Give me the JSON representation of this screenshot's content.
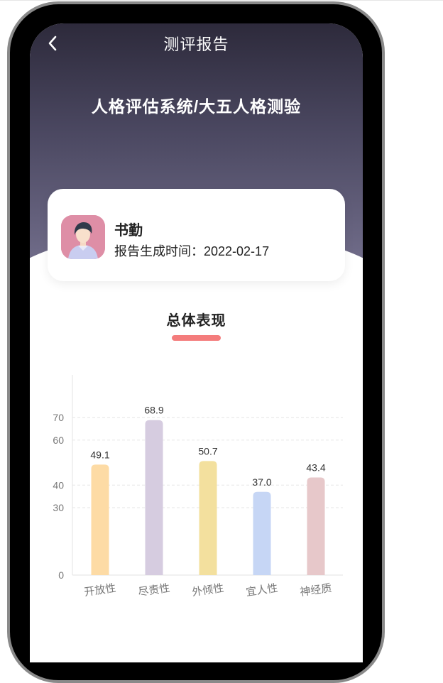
{
  "nav": {
    "title": "测评报告",
    "back_icon": "chevron-left-icon"
  },
  "header": {
    "system_title": "人格评估系统/大五人格测验"
  },
  "user": {
    "name": "书勤",
    "report_label": "报告生成时间：",
    "report_date": "2022-02-17"
  },
  "section": {
    "title": "总体表现",
    "accent": "#f47c7c"
  },
  "chart_data": {
    "type": "bar",
    "categories": [
      "开放性",
      "尽责性",
      "外倾性",
      "宜人性",
      "神经质"
    ],
    "values": [
      49.1,
      68.9,
      50.7,
      37.0,
      43.4
    ],
    "value_labels": [
      "49.1",
      "68.9",
      "50.7",
      "37.0",
      "43.4"
    ],
    "colors": [
      "#fddba5",
      "#d6cce0",
      "#f3e09e",
      "#c6d6f5",
      "#e7c8ca"
    ],
    "yticks": [
      0,
      30,
      40,
      60,
      70
    ],
    "ylim": [
      0,
      89
    ],
    "grid": true
  }
}
